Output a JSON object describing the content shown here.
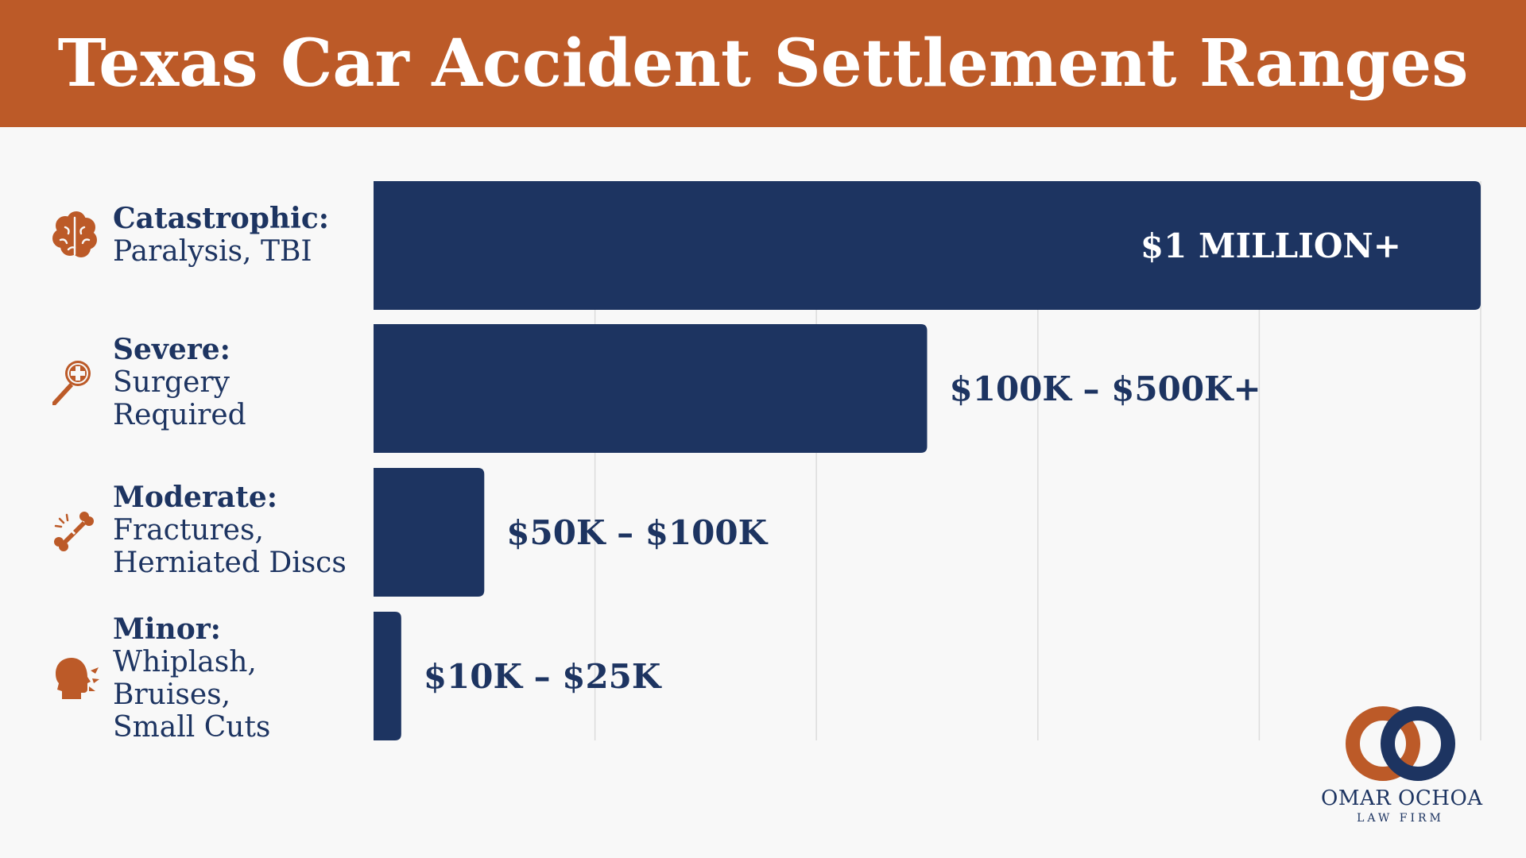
{
  "title": "Texas Car Accident Settlement Ranges",
  "colors": {
    "header": "#bc5a28",
    "bar": "#1d3461",
    "accent": "#bc5a28",
    "text": "#1d3461",
    "background": "#f8f8f8"
  },
  "categories": [
    {
      "level": "Catastrophic:",
      "description": "Paralysis, TBI",
      "icon": "brain-icon"
    },
    {
      "level": "Severe:",
      "description": "Surgery\nRequired",
      "icon": "scalpel-icon"
    },
    {
      "level": "Moderate:",
      "description": "Fractures,\nHerniated Discs",
      "icon": "bone-icon"
    },
    {
      "level": "Minor:",
      "description": "Whiplash,\nBruises,\nSmall Cuts",
      "icon": "whiplash-icon"
    }
  ],
  "chart_data": {
    "type": "bar",
    "orientation": "horizontal",
    "categories": [
      "Catastrophic: Paralysis, TBI",
      "Severe: Surgery Required",
      "Moderate: Fractures, Herniated Discs",
      "Minor: Whiplash, Bruises, Small Cuts"
    ],
    "values": [
      1000000,
      500000,
      100000,
      25000
    ],
    "value_labels": [
      "$1 MILLION+",
      "$100K – $500K+",
      "$50K – $100K",
      "$10K – $25K"
    ],
    "xlim": [
      0,
      1000000
    ],
    "grid": true,
    "gridlines": 5,
    "label_inside_first_bar": true
  },
  "logo": {
    "name": "OMAR OCHOA",
    "subtitle": "LAW FIRM"
  }
}
